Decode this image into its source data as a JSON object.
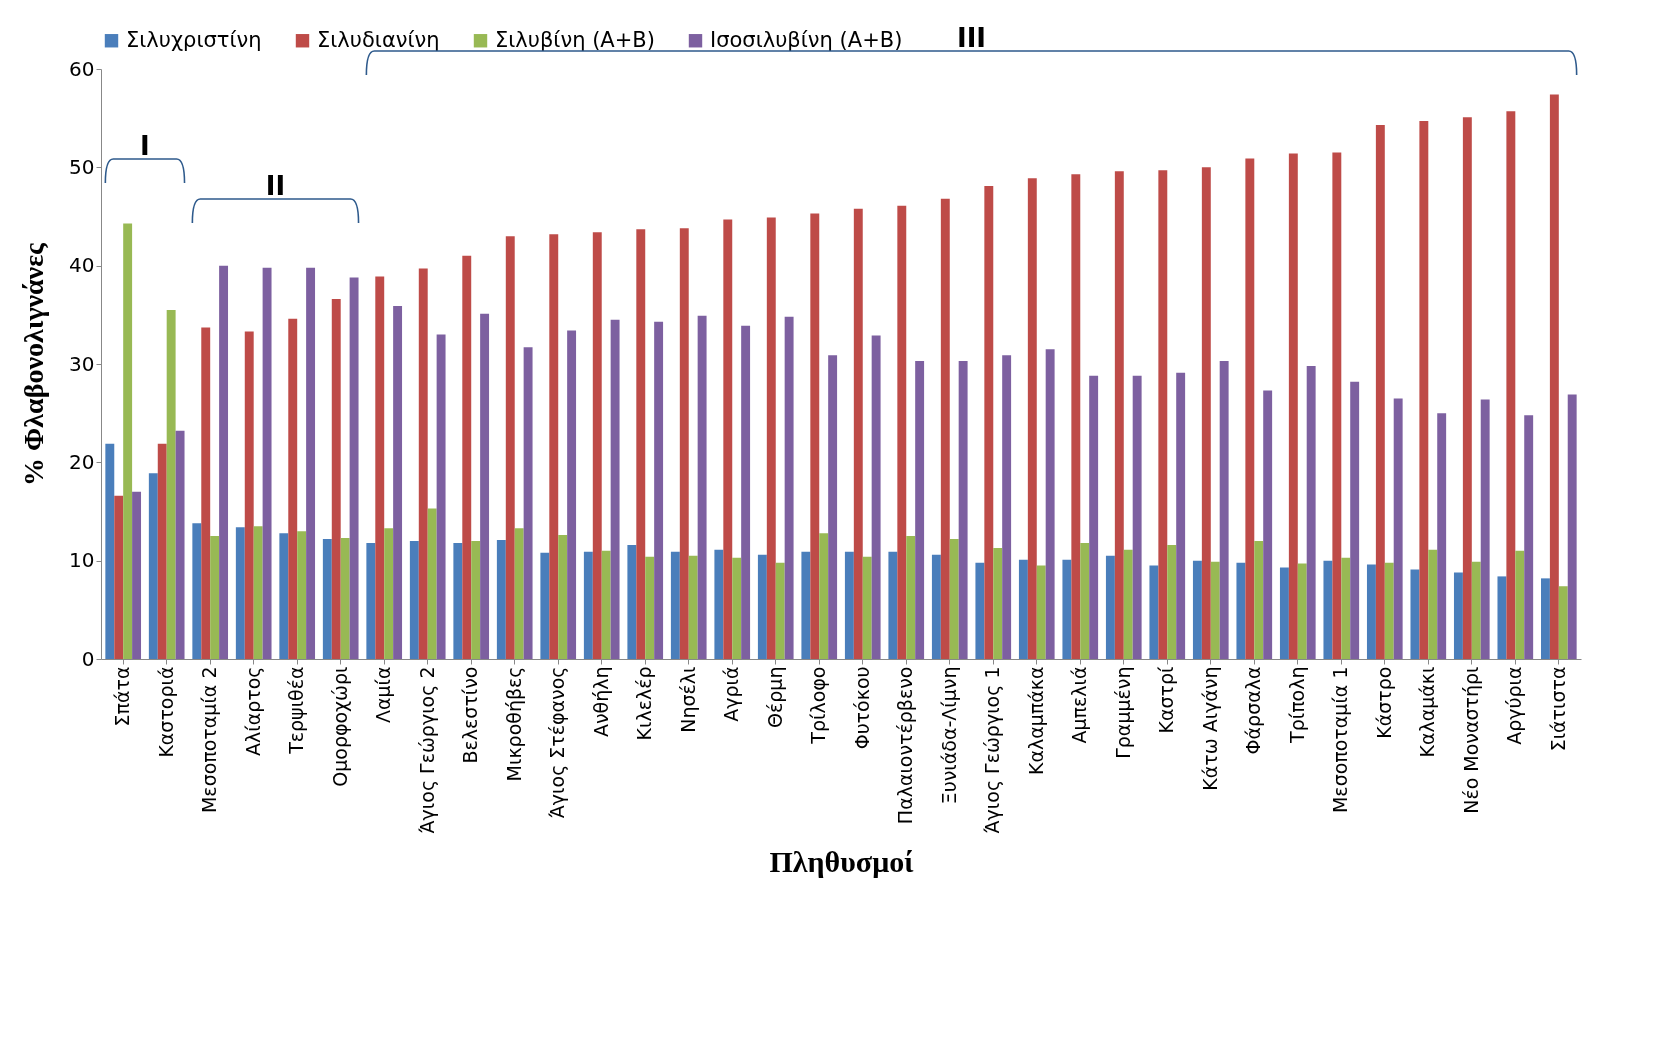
{
  "chart_data": {
    "type": "bar",
    "xlabel": "Πληθυσμοί",
    "ylabel": "% Φλαβονολιγνάνες",
    "legend": "top",
    "grid": false,
    "categories": [
      "Σπάτα",
      "Καστοριά",
      "Μεσοποταμία 2",
      "Αλίαρτος",
      "Τερψιθέα",
      "Ομορφοχώρι",
      "Λαμία",
      "Άγιος Γεώργιος 2",
      "Βελεστίνο",
      "Μικροθήβες",
      "Άγιος Στέφανος",
      "Ανθήλη",
      "Κιλελέρ",
      "Νησέλι",
      "Αγριά",
      "Θέρμη",
      "Τρίλοφο",
      "Φυτόκου",
      "Παλαιοντέρβενο",
      "Ξυνιάδα-Λίμνη",
      "Άγιος Γεώργιος 1",
      "Καλαμπάκα",
      "Αμπελιά",
      "Γραμμένη",
      "Καστρί",
      "Κάτω Αιγάνη",
      "Φάρσαλα",
      "Τρίπολη",
      "Μεσοποταμία 1",
      "Κάστρο",
      "Καλαμάκι",
      "Νέο Μοναστήρι",
      "Αργύρια",
      "Σιάτιστα"
    ],
    "ylim": [
      0,
      60
    ],
    "yticks": [
      0,
      10,
      20,
      30,
      40,
      50,
      60
    ],
    "series": [
      {
        "name": "Σιλυχριστίνη",
        "color": "#4a7ebb",
        "values": [
          21.9,
          18.9,
          13.8,
          13.4,
          12.8,
          12.2,
          11.8,
          12.0,
          11.8,
          12.1,
          10.8,
          10.9,
          11.6,
          10.9,
          11.1,
          10.6,
          10.9,
          10.9,
          10.9,
          10.6,
          9.8,
          10.1,
          10.1,
          10.5,
          9.5,
          10.0,
          9.8,
          9.3,
          10.0,
          9.6,
          9.1,
          8.8,
          8.4,
          8.2
        ]
      },
      {
        "name": "Σιλυδιανίνη",
        "color": "#be4b48",
        "values": [
          16.6,
          21.9,
          33.7,
          33.3,
          34.6,
          36.6,
          38.9,
          39.7,
          41.0,
          43.0,
          43.2,
          43.4,
          43.7,
          43.8,
          44.7,
          44.9,
          45.3,
          45.8,
          46.1,
          46.8,
          48.1,
          48.9,
          49.3,
          49.6,
          49.7,
          50.0,
          50.9,
          51.4,
          51.5,
          54.3,
          54.7,
          55.1,
          55.7,
          57.4
        ]
      },
      {
        "name": "Σιλυβίνη (Α+Β)",
        "color": "#98b954",
        "values": [
          44.3,
          35.5,
          12.5,
          13.5,
          13.0,
          12.3,
          13.3,
          15.3,
          12.0,
          13.3,
          12.6,
          11.0,
          10.4,
          10.5,
          10.3,
          9.8,
          12.8,
          10.4,
          12.5,
          12.2,
          11.3,
          9.5,
          11.8,
          11.1,
          11.6,
          9.9,
          12.0,
          9.7,
          10.3,
          9.8,
          11.1,
          9.9,
          11.0,
          7.4
        ]
      },
      {
        "name": "Ισοσιλυβίνη (Α+Β)",
        "color": "#7d60a0",
        "values": [
          17.0,
          23.2,
          40.0,
          39.8,
          39.8,
          38.8,
          35.9,
          33.0,
          35.1,
          31.7,
          33.4,
          34.5,
          34.3,
          34.9,
          33.9,
          34.8,
          30.9,
          32.9,
          30.3,
          30.3,
          30.9,
          31.5,
          28.8,
          28.8,
          29.1,
          30.3,
          27.3,
          29.8,
          28.2,
          26.5,
          25.0,
          26.4,
          24.8,
          26.9
        ]
      }
    ],
    "annotations": [
      "I",
      "II",
      "III"
    ]
  }
}
